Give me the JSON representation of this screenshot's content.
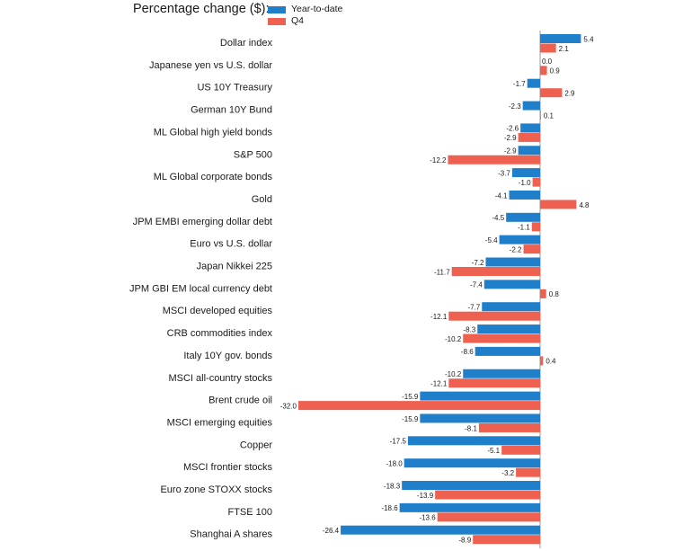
{
  "chart_data": {
    "type": "bar",
    "orientation": "horizontal",
    "title": "Percentage change ($):",
    "legend_position": "top",
    "grid": false,
    "categories": [
      "Dollar index",
      "Japanese yen vs U.S. dollar",
      "US 10Y Treasury",
      "German 10Y Bund",
      "ML Global high yield bonds",
      "S&P 500",
      "ML Global corporate bonds",
      "Gold",
      "JPM EMBI emerging dollar debt",
      "Euro vs U.S. dollar",
      "Japan Nikkei 225",
      "JPM GBI EM local currency debt",
      "MSCI developed equities",
      "CRB commodities index",
      "Italy 10Y gov. bonds",
      "MSCI all-country stocks",
      "Brent crude oil",
      "MSCI emerging equities",
      "Copper",
      "MSCI frontier stocks",
      "Euro zone STOXX stocks",
      "FTSE 100",
      "Shanghai A shares"
    ],
    "series": [
      {
        "name": "Year-to-date",
        "color": "#1f7fcb",
        "values": [
          5.4,
          0.0,
          -1.7,
          -2.3,
          -2.6,
          -2.9,
          -3.7,
          -4.1,
          -4.5,
          -5.4,
          -7.2,
          -7.4,
          -7.7,
          -8.3,
          -8.6,
          -10.2,
          -15.9,
          -15.9,
          -17.5,
          -18.0,
          -18.3,
          -18.6,
          -26.4
        ],
        "labels": [
          "5.4",
          "0.0",
          "-1.7",
          "-2.3",
          "-2.6",
          "-2.9",
          "-3.7",
          "-4.1",
          "-4.5",
          "-5.4",
          "-7.2",
          "-7.4",
          "-7.7",
          "-8.3",
          "-8.6",
          "-10.2",
          "-15.9",
          "-15.9",
          "-17.5",
          "-18.0",
          "-18.3",
          "-18.6",
          "-26.4"
        ]
      },
      {
        "name": "Q4",
        "color": "#ee6150",
        "values": [
          2.1,
          0.9,
          2.9,
          0.1,
          -2.9,
          -12.2,
          -1.0,
          4.8,
          -1.1,
          -2.2,
          -11.7,
          0.8,
          -12.1,
          -10.2,
          0.4,
          -12.1,
          -32.0,
          -8.1,
          -5.1,
          -3.2,
          -13.9,
          -13.6,
          -8.9
        ],
        "labels": [
          "2.1",
          "0.9",
          "2.9",
          "0.1",
          "-2.9",
          "-12.2",
          "-1.0",
          "4.8",
          "-1.1",
          "-2.2",
          "-11.7",
          "0.8",
          "-12.1",
          "-10.2",
          "0.4",
          "-12.1",
          "-32.0",
          "-8.1",
          "-5.1",
          "-3.2",
          "-13.9",
          "-13.6",
          "-8.9"
        ]
      }
    ],
    "xlim": [
      -32.0,
      8.0
    ]
  }
}
